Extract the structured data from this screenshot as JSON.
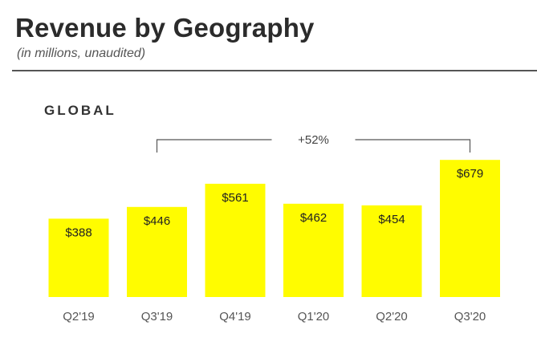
{
  "header": {
    "title": "Revenue by Geography",
    "subtitle": "(in millions, unaudited)"
  },
  "section_label": "GLOBAL",
  "chart_data": {
    "type": "bar",
    "categories": [
      "Q2'19",
      "Q3'19",
      "Q4'19",
      "Q1'20",
      "Q2'20",
      "Q3'20"
    ],
    "values": [
      388,
      446,
      561,
      462,
      454,
      679
    ],
    "value_labels": [
      "$388",
      "$446",
      "$561",
      "$462",
      "$454",
      "$679"
    ],
    "ylim": [
      0,
      700
    ],
    "grid": false,
    "legend": "none",
    "bar_color": "#fffc00",
    "annotation": {
      "text": "+52%",
      "from": "Q3'19",
      "to": "Q3'20"
    }
  }
}
